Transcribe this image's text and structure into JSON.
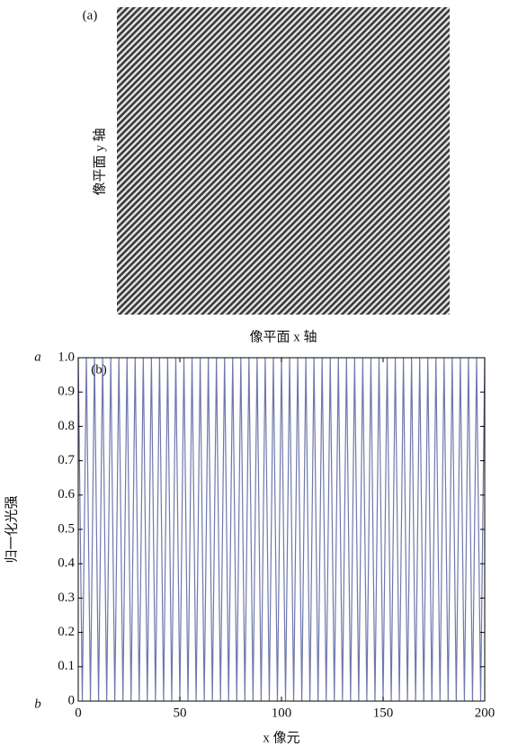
{
  "chart_data": [
    {
      "type": "image",
      "panel_label": "(a)",
      "x_label": "像平面 x 轴",
      "y_label": "像平面 y 轴"
    },
    {
      "type": "line",
      "panel_label": "(b)",
      "x_label": "x 像元",
      "y_label": "归一化光强",
      "annotations": [
        "a",
        "b"
      ],
      "x": [
        0,
        2,
        4,
        6,
        8,
        10,
        12,
        14,
        16,
        18,
        20,
        22,
        24,
        26,
        28,
        30,
        32,
        34,
        36,
        38,
        40,
        42,
        44,
        46,
        48,
        50,
        52,
        54,
        56,
        58,
        60,
        62,
        64,
        66,
        68,
        70,
        72,
        74,
        76,
        78,
        80,
        82,
        84,
        86,
        88,
        90,
        92,
        94,
        96,
        98,
        100,
        102,
        104,
        106,
        108,
        110,
        112,
        114,
        116,
        118,
        120,
        122,
        124,
        126,
        128,
        130,
        132,
        134,
        136,
        138,
        140,
        142,
        144,
        146,
        148,
        150,
        152,
        154,
        156,
        158,
        160,
        162,
        164,
        166,
        168,
        170,
        172,
        174,
        176,
        178,
        180,
        182,
        184,
        186,
        188,
        190,
        192,
        194,
        196,
        198,
        200
      ],
      "series": [
        {
          "color": "#6f78ab",
          "values": [
            1,
            0,
            1,
            0,
            1,
            0,
            1,
            0,
            1,
            0,
            1,
            0,
            1,
            0,
            1,
            0,
            1,
            0,
            1,
            0,
            1,
            0,
            1,
            0,
            1,
            0,
            1,
            0,
            1,
            0,
            1,
            0,
            1,
            0,
            1,
            0,
            1,
            0,
            1,
            0,
            1,
            0,
            1,
            0,
            1,
            0,
            1,
            0,
            1,
            0,
            1,
            0,
            1,
            0,
            1,
            0,
            1,
            0,
            1,
            0,
            1,
            0,
            1,
            0,
            1,
            0,
            1,
            0,
            1,
            0,
            1,
            0,
            1,
            0,
            1,
            0,
            1,
            0,
            1,
            0,
            1,
            0,
            1,
            0,
            1,
            0,
            1,
            0,
            1,
            0,
            1,
            0,
            1,
            0,
            1,
            0,
            1,
            0,
            1,
            0,
            1
          ]
        }
      ],
      "xlim": [
        0,
        200
      ],
      "ylim": [
        0,
        1
      ],
      "xticks": [
        0,
        50,
        100,
        150,
        200
      ],
      "yticks": [
        0,
        0.1,
        0.2,
        0.3,
        0.4,
        0.5,
        0.6,
        0.7,
        0.8,
        0.9,
        {
          "value": 1,
          "label": "1.0"
        }
      ]
    }
  ]
}
